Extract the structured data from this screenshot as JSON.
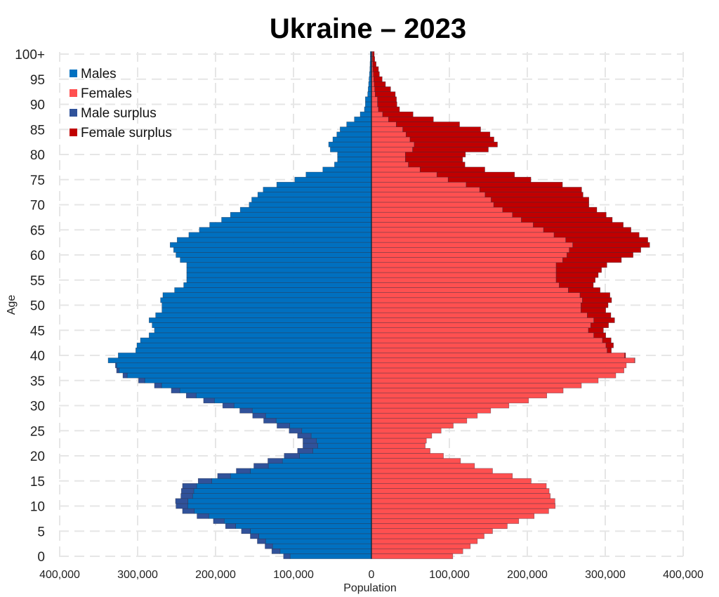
{
  "chart_data": {
    "type": "bar",
    "orientation": "horizontal-pyramid",
    "title": "Ukraine – 2023",
    "xlabel": "Population",
    "ylabel": "Age",
    "xlim": [
      -400000,
      400000
    ],
    "ylim": [
      0,
      100
    ],
    "grid": true,
    "legend_position": "top-left",
    "x_ticks": [
      "400,000",
      "300,000",
      "200,000",
      "100,000",
      "0",
      "100,000",
      "200,000",
      "300,000",
      "400,000"
    ],
    "y_ticks": [
      "0",
      "5",
      "10",
      "15",
      "20",
      "25",
      "30",
      "35",
      "40",
      "45",
      "50",
      "55",
      "60",
      "65",
      "70",
      "75",
      "80",
      "85",
      "90",
      "95",
      "100+"
    ],
    "legend": [
      "Males",
      "Females",
      "Male surplus",
      "Female surplus"
    ],
    "colors": {
      "males": "#0070c0",
      "females": "#ff5050",
      "male_surplus": "#30529a",
      "female_surplus": "#c00000"
    },
    "males": [
      112800,
      127800,
      136500,
      146400,
      155400,
      166800,
      187200,
      202800,
      223800,
      242400,
      250800,
      251400,
      244500,
      243900,
      242400,
      222300,
      197400,
      173400,
      150900,
      132900,
      111900,
      94800,
      87900,
      87900,
      94800,
      105600,
      121200,
      138300,
      152400,
      168900,
      190800,
      215400,
      237600,
      256800,
      278400,
      298800,
      318900,
      327000,
      328500,
      337800,
      324900,
      302400,
      300900,
      296400,
      285300,
      278400,
      281400,
      285300,
      276900,
      268800,
      268800,
      270600,
      267600,
      252600,
      240900,
      237000,
      237000,
      237000,
      237000,
      245400,
      250800,
      253800,
      258300,
      249300,
      234300,
      220800,
      207600,
      192300,
      180900,
      168300,
      156900,
      153600,
      145800,
      138900,
      121500,
      98400,
      84000,
      62400,
      47400,
      43500,
      43500,
      52800,
      54900,
      49500,
      44400,
      40200,
      31800,
      21900,
      14400,
      9000,
      7800,
      7800,
      4800,
      4200,
      3600,
      3000,
      2500,
      2000,
      1800,
      1500,
      1500
    ],
    "females": [
      104400,
      117300,
      126900,
      135900,
      144600,
      155400,
      174300,
      189000,
      208800,
      227400,
      235800,
      235500,
      229500,
      228000,
      224400,
      204900,
      180900,
      155400,
      132300,
      114300,
      92400,
      75300,
      69000,
      70500,
      77400,
      89400,
      105000,
      122400,
      135900,
      153000,
      176400,
      201600,
      225000,
      246000,
      269400,
      291000,
      313500,
      324000,
      327000,
      338100,
      326100,
      307800,
      310500,
      307500,
      300600,
      297600,
      304200,
      312000,
      307200,
      300600,
      303600,
      308100,
      306000,
      293400,
      284700,
      287100,
      291000,
      295200,
      302100,
      320700,
      335700,
      345600,
      357000,
      354600,
      343500,
      333000,
      323100,
      309000,
      301200,
      289200,
      279000,
      279000,
      271500,
      269700,
      245100,
      204600,
      183600,
      145500,
      120000,
      117000,
      120600,
      150000,
      161700,
      157200,
      152100,
      140100,
      113100,
      79500,
      53400,
      36000,
      32700,
      32100,
      30600,
      24600,
      18000,
      13800,
      10200,
      9000,
      6000,
      4200,
      3600
    ]
  }
}
